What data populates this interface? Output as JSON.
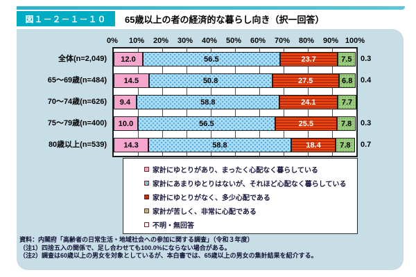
{
  "header": {
    "figure_label": "図１－２－１－１０",
    "title": "65歳以上の者の経済的な暮らし向き（択一回答）"
  },
  "chart_data": {
    "type": "bar",
    "stacked": true,
    "orientation": "horizontal",
    "unit": "%",
    "xlim": [
      0,
      100
    ],
    "grid": true,
    "legend_position": "bottom",
    "x_ticks": [
      "0%",
      "10%",
      "20%",
      "30%",
      "40%",
      "50%",
      "60%",
      "70%",
      "80%",
      "90%",
      "100%"
    ],
    "categories": [
      "全体(n=2,049)",
      "65～69歳(n=484)",
      "70～74歳(n=626)",
      "75～79歳(n=400)",
      "80歳以上(n=539)"
    ],
    "series": [
      {
        "name": "家計にゆとりがあり、まったく心配なく暮らしている",
        "color": "#f4a6cd",
        "pattern": "pink",
        "label_color": "#000000",
        "values": [
          12.0,
          14.5,
          9.4,
          10.0,
          14.3
        ]
      },
      {
        "name": "家計にあまりゆとりはないが、それほど心配なく暮らしている",
        "color": "#abdcf5",
        "pattern": "bluedots",
        "label_color": "#000000",
        "values": [
          56.5,
          50.8,
          58.8,
          56.5,
          58.8
        ]
      },
      {
        "name": "家計にゆとりがなく、多少心配である",
        "color": "#e9430f",
        "pattern": "redstripes",
        "label_color": "#ffffff",
        "values": [
          23.7,
          27.5,
          24.1,
          25.5,
          18.4
        ]
      },
      {
        "name": "家計が苦しく、非常に心配である",
        "color": "#9bcc80",
        "pattern": "greendots",
        "label_color": "#000000",
        "values": [
          7.5,
          6.8,
          7.7,
          7.8,
          7.8
        ]
      },
      {
        "name": "不明・無回答",
        "color": "#ffffff",
        "pattern": "white",
        "label_color": "#000000",
        "label_outside": true,
        "values": [
          0.3,
          0.4,
          null,
          0.3,
          0.7
        ]
      }
    ]
  },
  "notes": [
    "資料：内閣府「高齢者の日常生活・地域社会への参加に関する調査」（令和３年度）",
    "（注1）四捨五入の関係で、足し合わせても100.0%にならない場合がある。",
    "（注2）調査は60歳以上の男女を対象としているが、本白書では、65歳以上の男女の集計結果を紹介する。"
  ]
}
